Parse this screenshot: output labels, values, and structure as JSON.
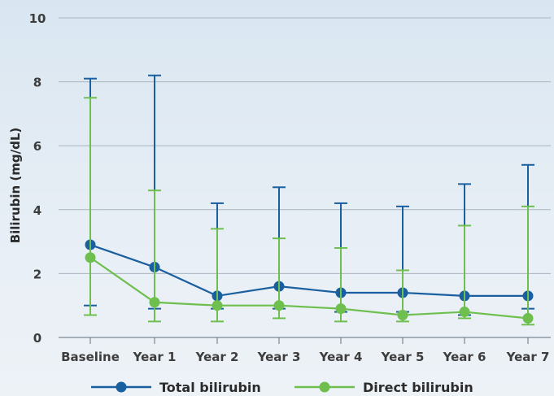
{
  "chart_data": {
    "type": "line",
    "categories": [
      "Baseline",
      "Year 1",
      "Year 2",
      "Year 3",
      "Year 4",
      "Year 5",
      "Year 6",
      "Year 7"
    ],
    "ylabel": "Bilirubin (mg/dL)",
    "xlabel": "",
    "ylim": [
      0,
      10
    ],
    "yticks": [
      "0",
      "2",
      "4",
      "6",
      "8",
      "10"
    ],
    "grid": true,
    "legend_position": "bottom",
    "series": [
      {
        "name": "Total bilirubin",
        "color": "#1a5fa0",
        "values": [
          2.9,
          2.2,
          1.3,
          1.6,
          1.4,
          1.4,
          1.3,
          1.3
        ],
        "error_low": [
          1.0,
          0.9,
          0.9,
          0.9,
          0.8,
          0.8,
          0.7,
          0.9
        ],
        "error_high": [
          8.1,
          8.2,
          4.2,
          4.7,
          4.2,
          4.1,
          4.8,
          5.4
        ]
      },
      {
        "name": "Direct bilirubin",
        "color": "#6fbf4f",
        "values": [
          2.5,
          1.1,
          1.0,
          1.0,
          0.9,
          0.7,
          0.8,
          0.6
        ],
        "error_low": [
          0.7,
          0.5,
          0.5,
          0.6,
          0.5,
          0.5,
          0.6,
          0.4
        ],
        "error_high": [
          7.5,
          4.6,
          3.4,
          3.1,
          2.8,
          2.1,
          3.5,
          4.1
        ]
      }
    ]
  }
}
